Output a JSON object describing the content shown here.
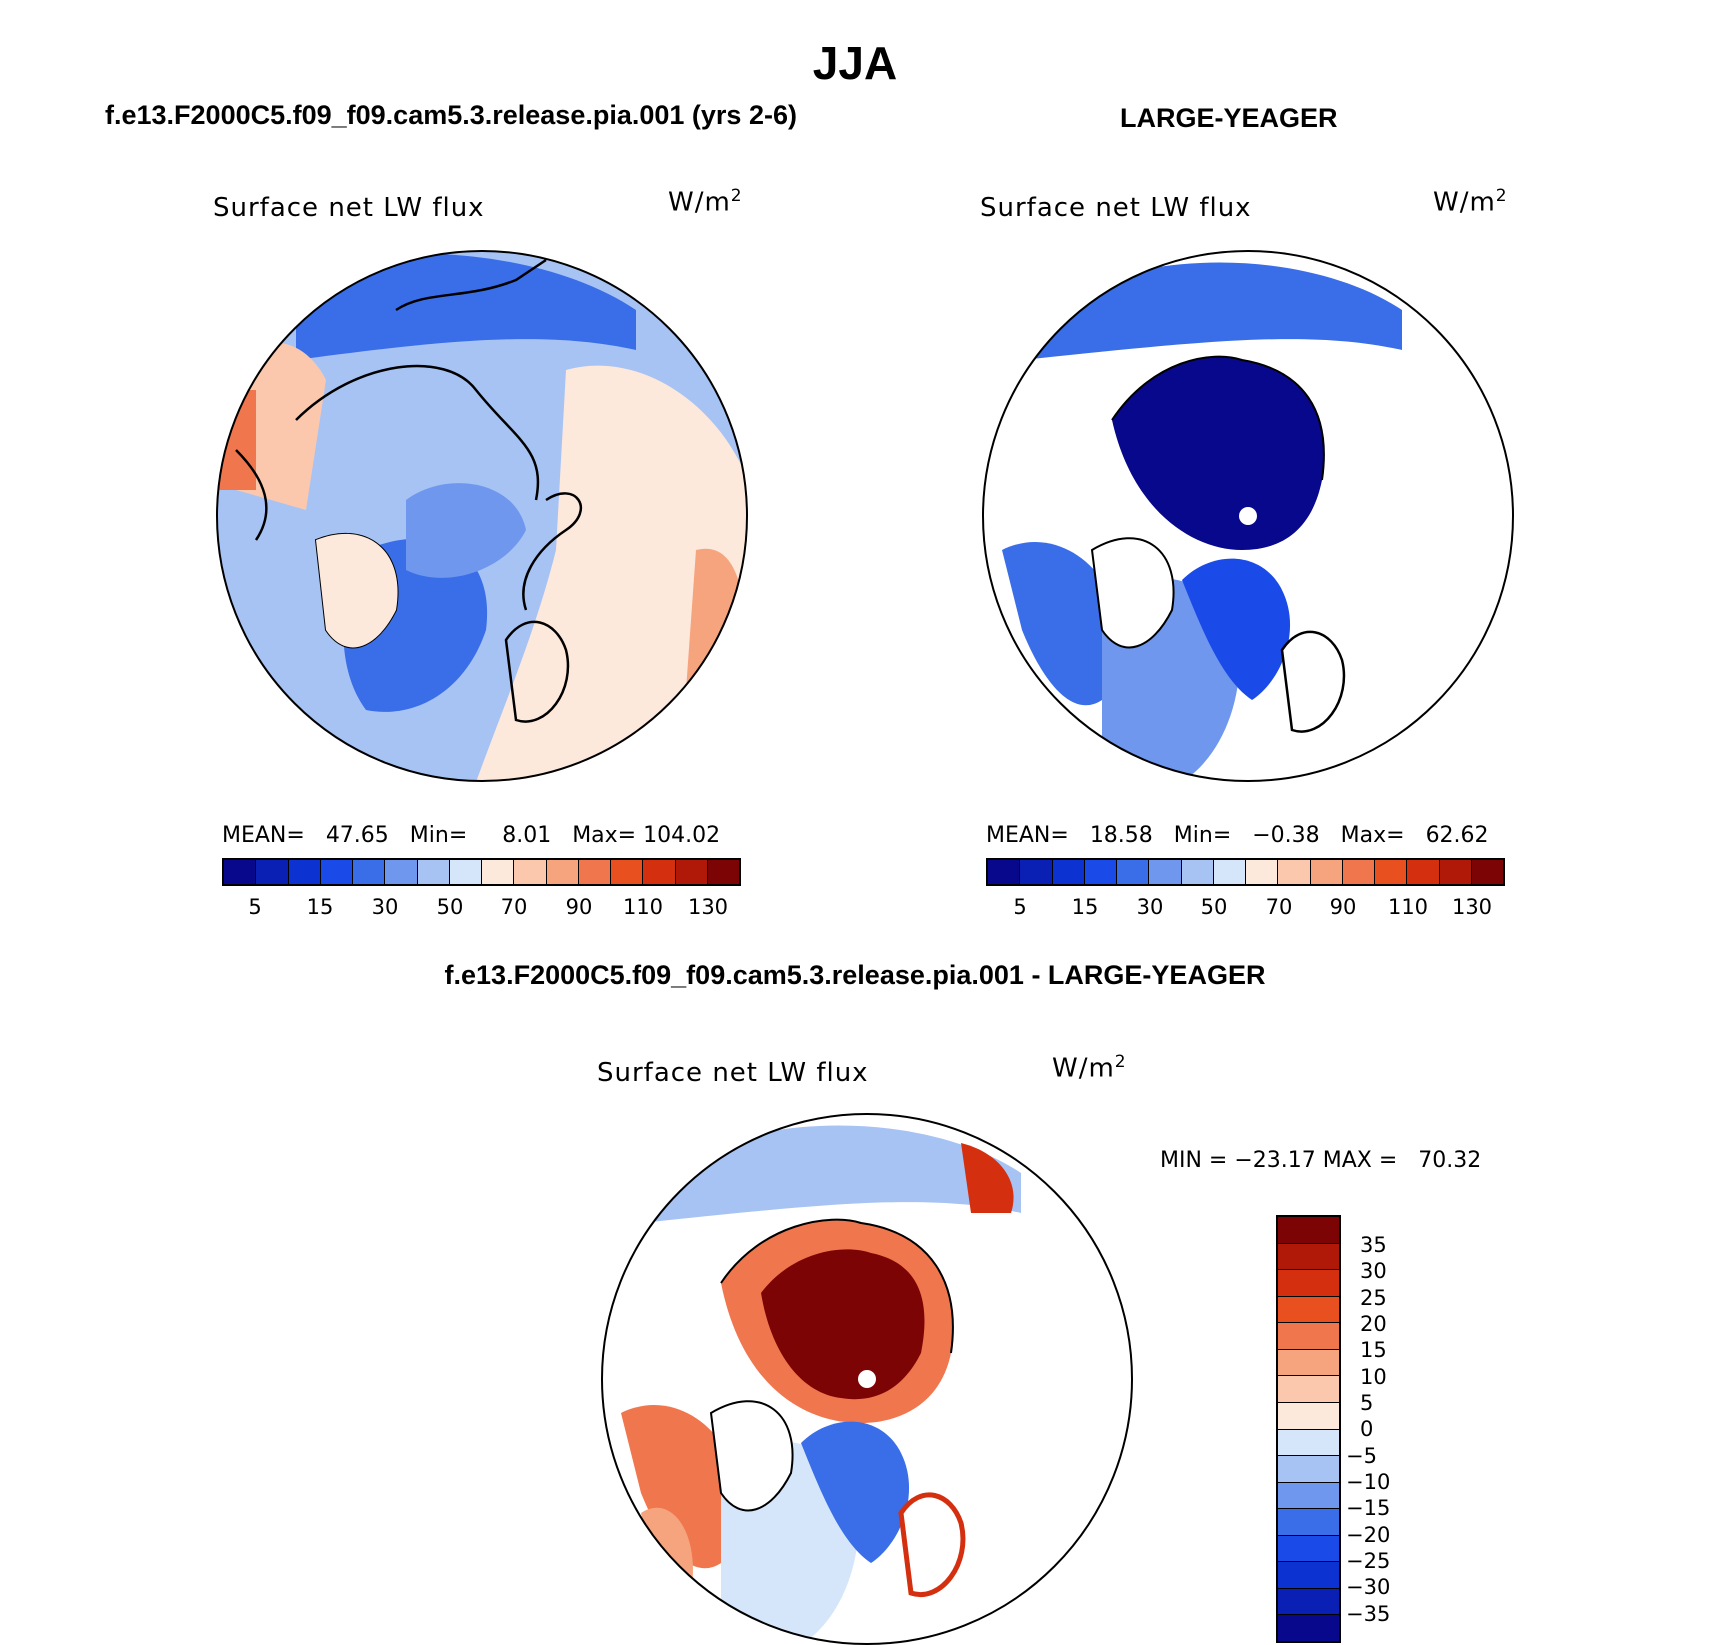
{
  "title": "JJA",
  "left_panel": {
    "header": "f.e13.F2000C5.f09_f09.cam5.3.release.pia.001 (yrs 2-6)",
    "subtitle": "Surface net LW flux",
    "units": "W/m",
    "units_exp": "2",
    "mean_label": "MEAN=",
    "mean_value": "47.65",
    "min_label": "Min=",
    "min_value": "8.01",
    "max_label": "Max=",
    "max_value": "104.02",
    "colorbar_ticks": [
      "5",
      "15",
      "30",
      "50",
      "70",
      "90",
      "110",
      "130"
    ]
  },
  "right_panel": {
    "header": "LARGE-YEAGER",
    "subtitle": "Surface net LW flux",
    "units": "W/m",
    "units_exp": "2",
    "mean_label": "MEAN=",
    "mean_value": "18.58",
    "min_label": "Min=",
    "min_value": "−0.38",
    "max_label": "Max=",
    "max_value": "62.62",
    "colorbar_ticks": [
      "5",
      "15",
      "30",
      "50",
      "70",
      "90",
      "110",
      "130"
    ]
  },
  "diff_panel": {
    "header": "f.e13.F2000C5.f09_f09.cam5.3.release.pia.001 - LARGE-YEAGER",
    "subtitle": "Surface net LW flux",
    "units": "W/m",
    "units_exp": "2",
    "minmax_text": "MIN = −23.17 MAX =   70.32",
    "colorbar_ticks": [
      "35",
      "30",
      "25",
      "20",
      "15",
      "10",
      "5",
      "0",
      "−5",
      "−10",
      "−15",
      "−20",
      "−25",
      "−30",
      "−35"
    ]
  },
  "colors": {
    "abs_scale": [
      "#08088c",
      "#0a20b4",
      "#0c32d2",
      "#1a4be8",
      "#3a6ee8",
      "#6f97ee",
      "#a7c3f4",
      "#d6e6fa",
      "#fde8dc",
      "#fbc8ae",
      "#f6a47e",
      "#f0764e",
      "#e85020",
      "#d43010",
      "#b01808",
      "#7c0404"
    ],
    "diff_scale": [
      "#7c0404",
      "#b01808",
      "#d43010",
      "#e85020",
      "#f0764e",
      "#f6a47e",
      "#fbc8ae",
      "#fde8dc",
      "#d6e6fa",
      "#a7c3f4",
      "#6f97ee",
      "#3a6ee8",
      "#1a4be8",
      "#0c32d2",
      "#0a20b4",
      "#08088c"
    ]
  }
}
